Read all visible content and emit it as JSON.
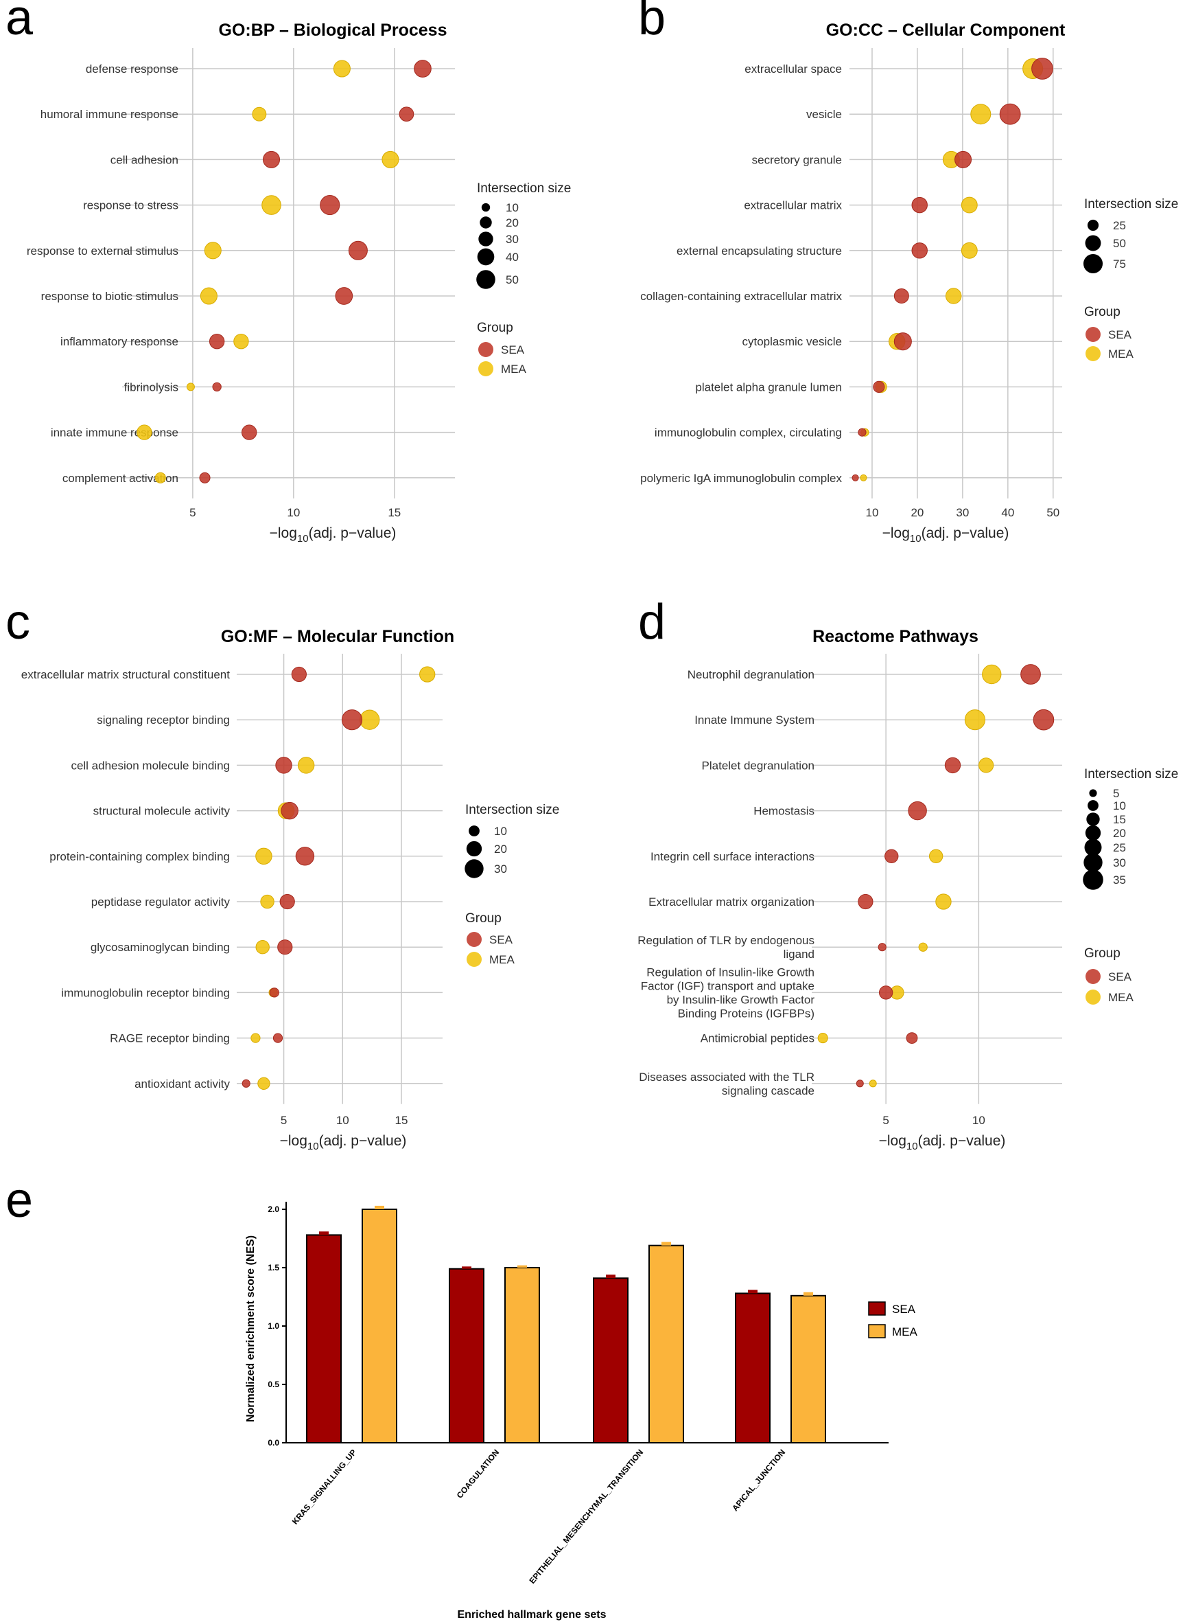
{
  "colors": {
    "SEA": "#c0392b",
    "MEA": "#f1c40f",
    "SEA_bar": "#a00000",
    "MEA_bar": "#fbb43b"
  },
  "chart_data": [
    {
      "panel": "a",
      "type": "scatter",
      "title": "GO:BP – Biological Process",
      "xlabel": "−log10(adj. p−value)",
      "xlabel_parts": [
        "−log",
        "10",
        "(adj. p−value)"
      ],
      "xlim": [
        1.5,
        18
      ],
      "xticks": [
        5,
        10,
        15
      ],
      "categories": [
        "defense response",
        "humoral immune response",
        "cell adhesion",
        "response to stress",
        "response to external stimulus",
        "response to biotic stimulus",
        "inflammatory response",
        "fibrinolysis",
        "innate immune response",
        "complement activation"
      ],
      "series": [
        {
          "name": "SEA",
          "x": [
            16.4,
            15.6,
            8.9,
            11.8,
            13.2,
            12.5,
            6.2,
            6.2,
            7.8,
            5.6
          ],
          "size": [
            40,
            28,
            38,
            52,
            48,
            40,
            30,
            10,
            30,
            15
          ]
        },
        {
          "name": "MEA",
          "x": [
            12.4,
            8.3,
            14.8,
            8.9,
            6.0,
            5.8,
            7.4,
            4.9,
            2.6,
            3.4
          ],
          "size": [
            38,
            26,
            38,
            50,
            38,
            38,
            30,
            8,
            30,
            15
          ]
        }
      ],
      "size_legend": {
        "title": "Intersection size",
        "values": [
          10,
          20,
          30,
          40,
          50
        ]
      },
      "group_legend": {
        "title": "Group",
        "items": [
          "SEA",
          "MEA"
        ]
      }
    },
    {
      "panel": "b",
      "type": "scatter",
      "title": "GO:CC – Cellular Component",
      "xlabel": "−log10(adj. p−value)",
      "xlabel_parts": [
        "−log",
        "10",
        "(adj. p−value)"
      ],
      "xlim": [
        5,
        52
      ],
      "xticks": [
        10,
        20,
        30,
        40,
        50
      ],
      "categories": [
        "extracellular space",
        "vesicle",
        "secretory granule",
        "extracellular matrix",
        "external encapsulating structure",
        "collagen-containing extracellular matrix",
        "cytoplasmic vesicle",
        "platelet alpha granule lumen",
        "immunoglobulin complex, circulating",
        "polymeric IgA immunoglobulin complex"
      ],
      "series": [
        {
          "name": "SEA",
          "x": [
            47.6,
            40.5,
            30.1,
            20.5,
            20.5,
            16.5,
            16.8,
            11.5,
            7.8,
            6.3
          ],
          "size": [
            90,
            85,
            55,
            48,
            48,
            42,
            60,
            25,
            12,
            8
          ]
        },
        {
          "name": "MEA",
          "x": [
            45.5,
            34.0,
            27.5,
            31.5,
            31.5,
            28.0,
            15.5,
            12.0,
            8.4,
            8.1
          ],
          "size": [
            80,
            80,
            55,
            50,
            50,
            48,
            52,
            25,
            12,
            8
          ]
        }
      ],
      "size_legend": {
        "title": "Intersection size",
        "values": [
          25,
          50,
          75
        ]
      },
      "group_legend": {
        "title": "Group",
        "items": [
          "SEA",
          "MEA"
        ]
      }
    },
    {
      "panel": "c",
      "type": "scatter",
      "title": "GO:MF – Molecular Function",
      "xlabel": "−log10(adj. p−value)",
      "xlabel_parts": [
        "−log",
        "10",
        "(adj. p−value)"
      ],
      "xlim": [
        1,
        18.5
      ],
      "xticks": [
        5,
        10,
        15
      ],
      "categories": [
        "extracellular matrix structural constituent",
        "signaling receptor binding",
        "cell adhesion molecule binding",
        "structural molecule activity",
        "protein-containing complex binding",
        "peptidase regulator activity",
        "glycosaminoglycan binding",
        "immunoglobulin receptor binding",
        "RAGE receptor binding",
        "antioxidant activity"
      ],
      "series": [
        {
          "name": "SEA",
          "x": [
            6.3,
            10.8,
            5.0,
            5.5,
            6.8,
            5.3,
            5.1,
            4.2,
            4.5,
            1.8
          ],
          "size": [
            18,
            34,
            22,
            24,
            28,
            18,
            18,
            7,
            7,
            5
          ]
        },
        {
          "name": "MEA",
          "x": [
            17.2,
            12.3,
            6.9,
            5.2,
            3.3,
            3.6,
            3.2,
            4.1,
            2.6,
            3.3
          ],
          "size": [
            20,
            32,
            22,
            22,
            22,
            15,
            15,
            6,
            7,
            12
          ]
        }
      ],
      "size_legend": {
        "title": "Intersection size",
        "values": [
          10,
          20,
          30
        ]
      },
      "group_legend": {
        "title": "Group",
        "items": [
          "SEA",
          "MEA"
        ]
      }
    },
    {
      "panel": "d",
      "type": "scatter",
      "title": "Reactome Pathways",
      "xlabel": "−log10(adj. p−value)",
      "xlabel_parts": [
        "−log",
        "10",
        "(adj. p−value)"
      ],
      "xlim": [
        1,
        14.5
      ],
      "xticks": [
        5,
        10
      ],
      "categories": [
        [
          "Neutrophil degranulation"
        ],
        [
          "Innate Immune System"
        ],
        [
          "Platelet degranulation"
        ],
        [
          "Hemostasis"
        ],
        [
          "Integrin cell surface interactions"
        ],
        [
          "Extracellular matrix organization"
        ],
        [
          "Regulation of TLR by endogenous",
          "ligand"
        ],
        [
          "Regulation of Insulin-like Growth",
          "Factor (IGF) transport and uptake",
          "by Insulin-like Growth Factor",
          "Binding Proteins (IGFBPs)"
        ],
        [
          "Antimicrobial peptides"
        ],
        [
          "Diseases associated with the TLR",
          "signaling cascade"
        ]
      ],
      "series": [
        {
          "name": "SEA",
          "x": [
            12.8,
            13.5,
            8.6,
            6.7,
            5.3,
            3.9,
            4.8,
            5.0,
            6.4,
            3.6
          ],
          "size": [
            33,
            35,
            20,
            28,
            15,
            18,
            5,
            15,
            10,
            4
          ]
        },
        {
          "name": "MEA",
          "x": [
            10.7,
            9.8,
            10.4,
            null,
            7.7,
            8.1,
            7.0,
            5.6,
            1.6,
            4.3
          ],
          "size": [
            30,
            34,
            18,
            0,
            15,
            20,
            6,
            15,
            8,
            4
          ]
        }
      ],
      "size_legend": {
        "title": "Intersection size",
        "values": [
          5,
          10,
          15,
          20,
          25,
          30,
          35
        ]
      },
      "group_legend": {
        "title": "Group",
        "items": [
          "SEA",
          "MEA"
        ]
      }
    },
    {
      "panel": "e",
      "type": "bar",
      "xlabel": "Enriched hallmark gene sets",
      "ylabel": "Normalized enrichment score (NES)",
      "ylim": [
        0,
        2.0
      ],
      "yticks": [
        "0.0",
        "0.5",
        "1.0",
        "1.5",
        "2.0"
      ],
      "categories": [
        "KRAS_SIGNALLING_UP",
        "COAGULATION",
        "EPITHELIAL_MESENCHYMAL_TRANSITION",
        "APICAL_JUNCTION"
      ],
      "series": [
        {
          "name": "SEA",
          "values": [
            1.78,
            1.49,
            1.41,
            1.28
          ],
          "err": [
            0.03,
            0.02,
            0.03,
            0.03
          ]
        },
        {
          "name": "MEA",
          "values": [
            2.0,
            1.5,
            1.69,
            1.26
          ],
          "err": [
            0.03,
            0.02,
            0.03,
            0.03
          ]
        }
      ],
      "legend": [
        "SEA",
        "MEA"
      ]
    }
  ]
}
